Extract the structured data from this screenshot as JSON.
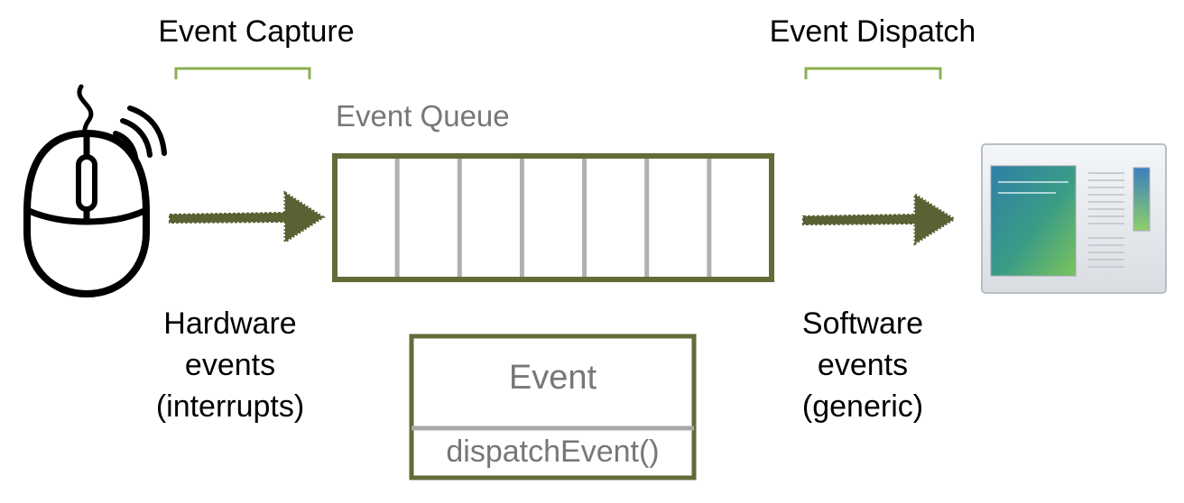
{
  "stages": {
    "capture_label": "Event Capture",
    "dispatch_label": "Event Dispatch"
  },
  "queue": {
    "title": "Event Queue",
    "slot_count": 7
  },
  "event_class": {
    "name": "Event",
    "method": "dispatchEvent()"
  },
  "hardware": {
    "lines": [
      "Hardware",
      "events",
      "(interrupts)"
    ]
  },
  "software": {
    "lines": [
      "Software",
      "events",
      "(generic)"
    ]
  },
  "icons": {
    "source": "mouse-icon",
    "target": "application-window-icon"
  },
  "colors": {
    "frame": "#636b39",
    "bracket": "#8db050",
    "divider": "#b0b0b0",
    "arrow": "#5a6233"
  }
}
